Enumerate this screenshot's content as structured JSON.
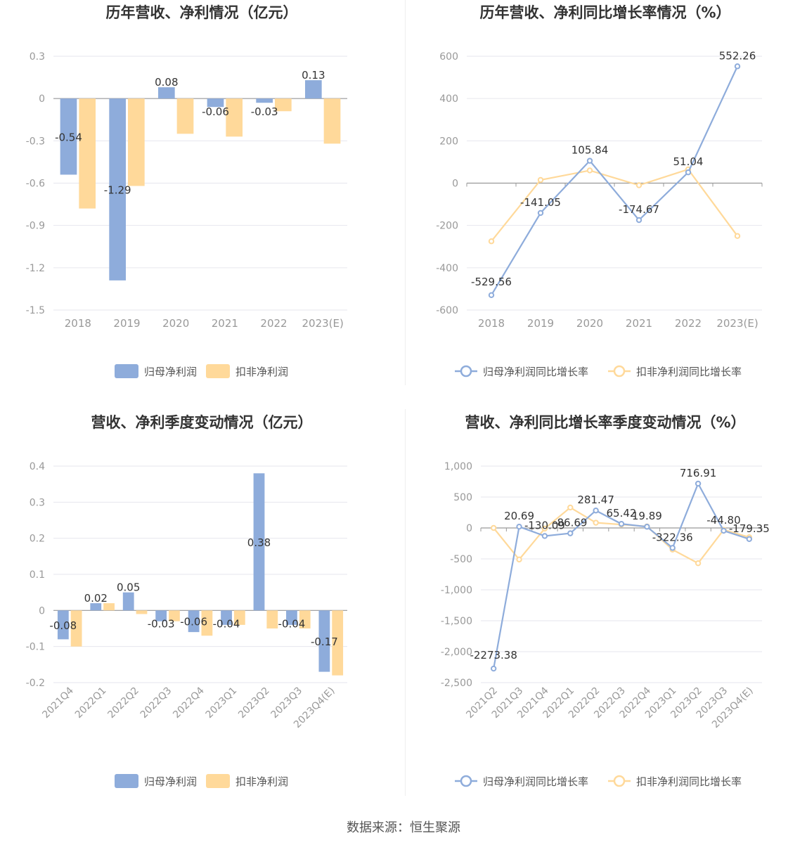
{
  "source_text": "数据来源：恒生聚源",
  "colors": {
    "series_a": "#8eacdb",
    "series_b": "#ffd99a",
    "axis": "#999999",
    "grid": "#e6e6ee",
    "text": "#555555",
    "title": "#333333"
  },
  "chart_data": [
    {
      "type": "bar",
      "title": "历年营收、净利情况（亿元）",
      "categories": [
        "2018",
        "2019",
        "2020",
        "2021",
        "2022",
        "2023(E)"
      ],
      "ylim": [
        -1.5,
        0.3
      ],
      "yticks": [
        "0.3",
        "0",
        "-0.3",
        "-0.6",
        "-0.9",
        "-1.2",
        "-1.5"
      ],
      "ytick_values": [
        0.3,
        0,
        -0.3,
        -0.6,
        -0.9,
        -1.2,
        -1.5
      ],
      "series": [
        {
          "name": "归母净利润",
          "values": [
            -0.54,
            -1.29,
            0.08,
            -0.06,
            -0.03,
            0.13
          ],
          "labels": [
            "-0.54",
            "-1.29",
            "0.08",
            "-0.06",
            "-0.03",
            "0.13"
          ]
        },
        {
          "name": "扣非净利润",
          "values": [
            -0.78,
            -0.62,
            -0.25,
            -0.27,
            -0.09,
            -0.32
          ]
        }
      ],
      "legend": "bottom"
    },
    {
      "type": "line",
      "title": "历年营收、净利同比增长率情况（%）",
      "categories": [
        "2018",
        "2019",
        "2020",
        "2021",
        "2022",
        "2023(E)"
      ],
      "ylim": [
        -600,
        600
      ],
      "yticks": [
        "600",
        "400",
        "200",
        "0",
        "-200",
        "-400",
        "-600"
      ],
      "ytick_values": [
        600,
        400,
        200,
        0,
        -200,
        -400,
        -600
      ],
      "series": [
        {
          "name": "归母净利润同比增长率",
          "values": [
            -529.56,
            -141.05,
            105.84,
            -174.67,
            51.04,
            552.26
          ],
          "labels": [
            "-529.56",
            "-141.05",
            "105.84",
            "-174.67",
            "51.04",
            "552.26"
          ]
        },
        {
          "name": "扣非净利润同比增长率",
          "values": [
            -275,
            15,
            60,
            -10,
            65,
            -250
          ]
        }
      ],
      "legend": "bottom"
    },
    {
      "type": "bar",
      "title": "营收、净利季度变动情况（亿元）",
      "categories": [
        "2021Q4",
        "2022Q1",
        "2022Q2",
        "2022Q3",
        "2022Q4",
        "2023Q1",
        "2023Q2",
        "2023Q3",
        "2023Q4(E)"
      ],
      "ylim": [
        -0.2,
        0.4
      ],
      "yticks": [
        "0.4",
        "0.3",
        "0.2",
        "0.1",
        "0",
        "-0.1",
        "-0.2"
      ],
      "ytick_values": [
        0.4,
        0.3,
        0.2,
        0.1,
        0,
        -0.1,
        -0.2
      ],
      "series": [
        {
          "name": "归母净利润",
          "values": [
            -0.08,
            0.02,
            0.05,
            -0.03,
            -0.06,
            -0.04,
            0.38,
            -0.04,
            -0.17
          ],
          "labels": [
            "-0.08",
            "0.02",
            "0.05",
            "-0.03",
            "-0.06",
            "-0.04",
            "0.38",
            "-0.04",
            "-0.17"
          ]
        },
        {
          "name": "扣非净利润",
          "values": [
            -0.1,
            0.02,
            -0.01,
            -0.03,
            -0.07,
            -0.04,
            -0.05,
            -0.05,
            -0.18
          ]
        }
      ],
      "legend": "bottom"
    },
    {
      "type": "line",
      "title": "营收、净利同比增长率季度变动情况（%）",
      "categories": [
        "2021Q2",
        "2021Q3",
        "2021Q4",
        "2022Q1",
        "2022Q2",
        "2022Q3",
        "2022Q4",
        "2023Q1",
        "2023Q2",
        "2023Q3",
        "2023Q4(E)"
      ],
      "ylim": [
        -2500,
        1000
      ],
      "yticks": [
        "1,000",
        "500",
        "0",
        "-500",
        "-1,000",
        "-1,500",
        "-2,000",
        "-2,500"
      ],
      "ytick_values": [
        1000,
        500,
        0,
        -500,
        -1000,
        -1500,
        -2000,
        -2500
      ],
      "series": [
        {
          "name": "归母净利润同比增长率",
          "values": [
            -2273.38,
            20.69,
            -130.09,
            -86.69,
            281.47,
            65.42,
            19.89,
            -322.36,
            716.91,
            -44.8,
            -179.35
          ],
          "labels": [
            "-2273.38",
            "20.69",
            "-130.09",
            "-86.69",
            "281.47",
            "65.42",
            "19.89",
            "-322.36",
            "716.91",
            "-44.80",
            "-179.35"
          ]
        },
        {
          "name": "扣非净利润同比增长率",
          "values": [
            0,
            -510,
            -10,
            330,
            85,
            55,
            25,
            -350,
            -570,
            -30,
            -150
          ]
        }
      ],
      "legend": "bottom"
    }
  ]
}
